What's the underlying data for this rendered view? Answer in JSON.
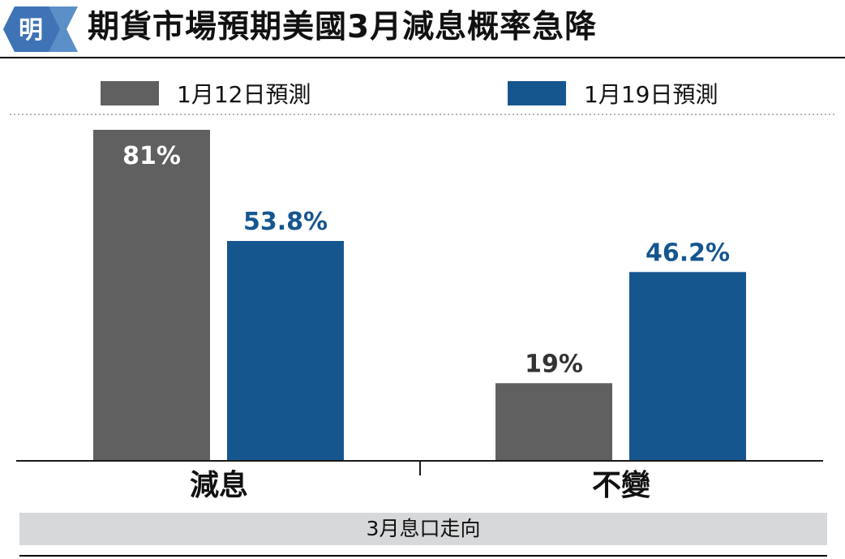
{
  "header": {
    "logo_char": "明",
    "title": "期貨市場預期美國3月減息概率急降"
  },
  "colors": {
    "series_a": "#606060",
    "series_b": "#16568f",
    "axis": "#1a1a1a",
    "footer_bg": "#d7d8da"
  },
  "chart_data": {
    "type": "bar",
    "title": "期貨市場預期美國3月減息概率急降",
    "xlabel": "3月息口走向",
    "ylabel": "",
    "categories": [
      "減息",
      "不變"
    ],
    "series": [
      {
        "name": "1月12日預測",
        "values": [
          81,
          19
        ],
        "labels": [
          "81%",
          "19%"
        ]
      },
      {
        "name": "1月19日預測",
        "values": [
          53.8,
          46.2
        ],
        "labels": [
          "53.8%",
          "46.2%"
        ]
      }
    ],
    "ylim": [
      0,
      81
    ],
    "grid": false,
    "legend_position": "top"
  },
  "footer": {
    "label": "3月息口走向"
  }
}
